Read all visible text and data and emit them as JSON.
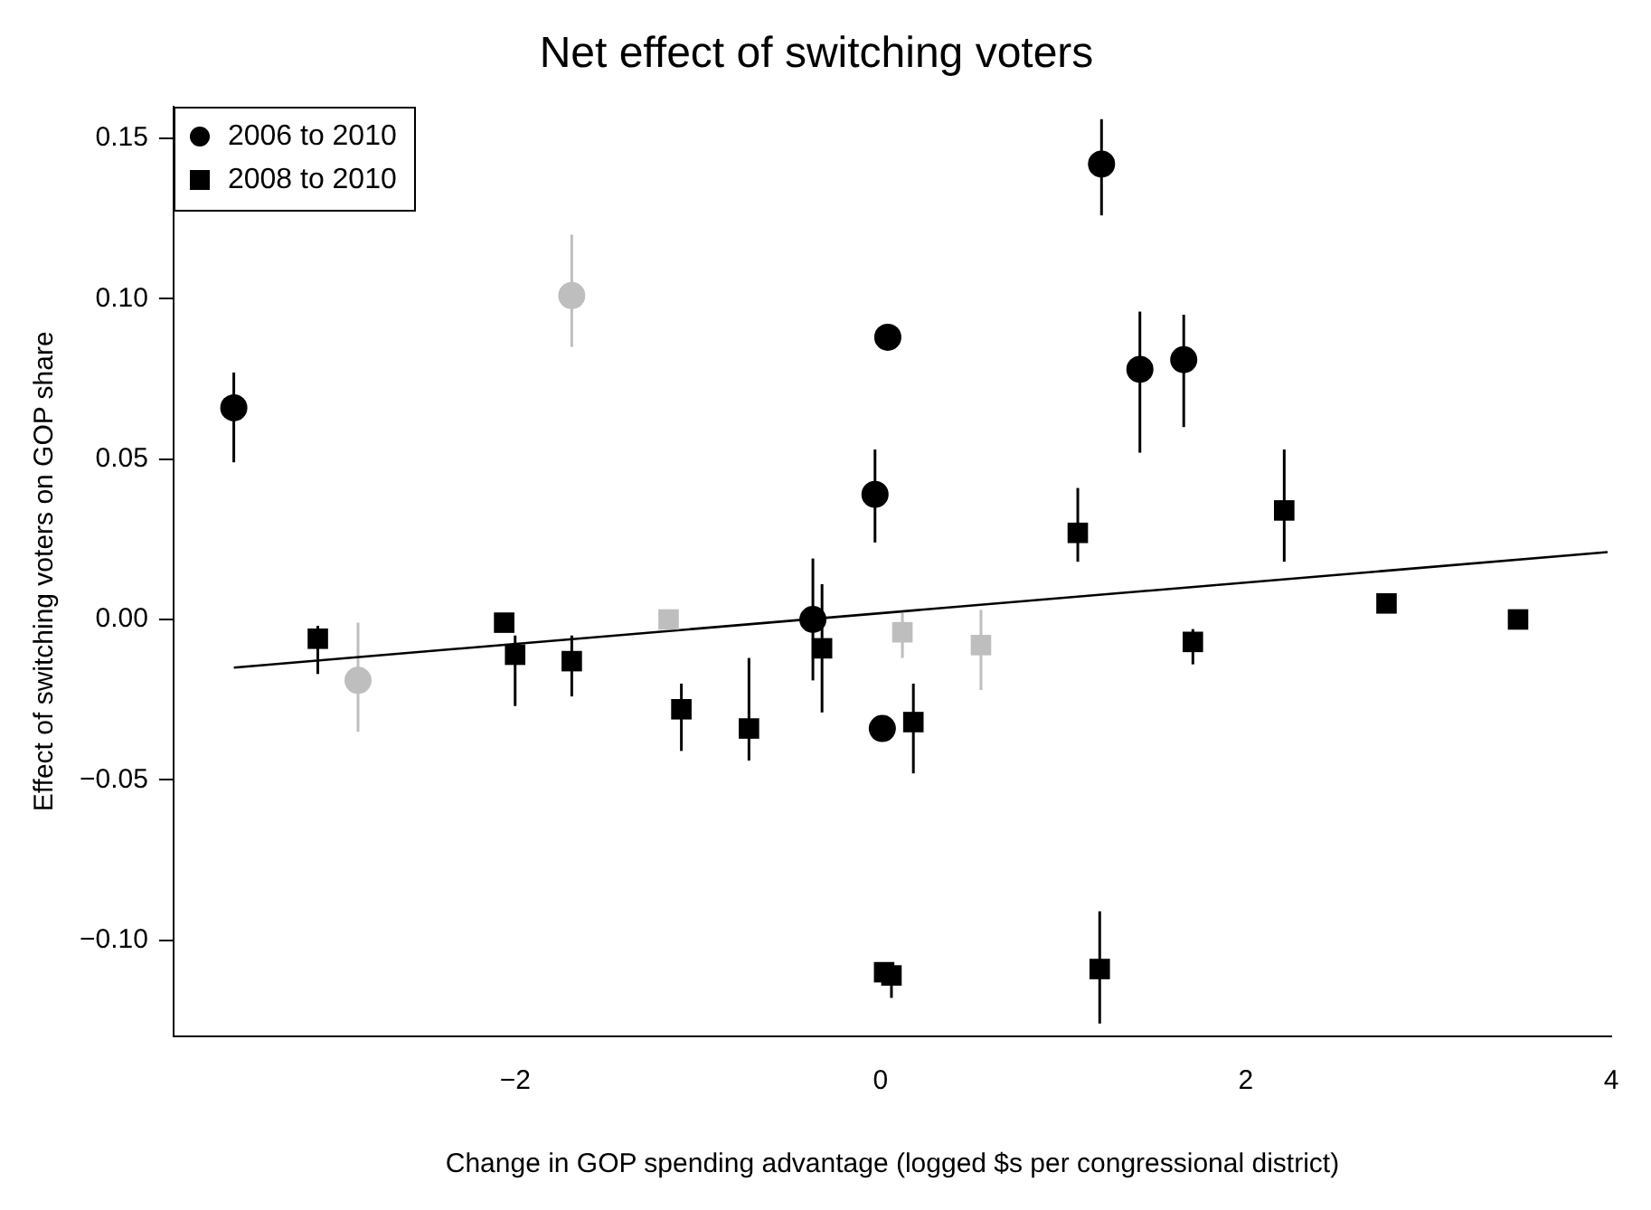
{
  "chart_data": {
    "type": "scatter",
    "title": "Net effect of switching voters",
    "xlabel": "Change in GOP spending advantage (logged $s per congressional district)",
    "ylabel": "Effect of switching voters on GOP share",
    "xlim": [
      -3.87,
      4.0
    ],
    "ylim": [
      -0.13,
      0.16
    ],
    "xticks": [
      {
        "value": -2,
        "label": "−2"
      },
      0,
      2,
      4
    ],
    "yticks": [
      {
        "value": -0.1,
        "label": "−0.10"
      },
      {
        "value": -0.05,
        "label": "−0.05"
      },
      {
        "value": 0,
        "label": "0.00"
      },
      {
        "value": 0.05,
        "label": "0.05"
      },
      {
        "value": 0.1,
        "label": "0.10"
      },
      {
        "value": 0.15,
        "label": "0.15"
      }
    ],
    "grid": false,
    "legend": "top left",
    "series": [
      {
        "name": "2006 to 2010",
        "color": "#000000",
        "marker": "circle",
        "x": [
          -3.54,
          -1.69,
          -2.86,
          -0.37,
          0.04,
          -0.03,
          0.01,
          1.21,
          1.42,
          1.66
        ],
        "values": [
          0.066,
          0.101,
          -0.019,
          0.0,
          0.088,
          0.039,
          -0.034,
          0.142,
          0.078,
          0.081
        ],
        "colors": [
          "#000000",
          "#bebebe",
          "#bebebe",
          "#000000",
          "#000000",
          "#000000",
          "#000000",
          "#000000",
          "#000000",
          "#000000"
        ],
        "errors": [
          [
            0.049,
            0.077
          ],
          [
            0.085,
            0.12
          ],
          [
            -0.035,
            -0.001
          ],
          0.019,
          null,
          [
            0.024,
            0.053
          ],
          null,
          [
            0.126,
            0.156
          ],
          [
            0.052,
            0.096
          ],
          [
            0.06,
            0.095
          ]
        ]
      },
      {
        "name": "2008 to 2010",
        "color": "#000000",
        "marker": "square",
        "x": [
          -3.08,
          -2.06,
          -2.0,
          -1.69,
          -1.16,
          -1.09,
          -0.72,
          -0.32,
          0.12,
          0.55,
          0.18,
          0.02,
          0.06,
          1.2,
          1.08,
          2.21,
          1.71,
          2.77,
          3.49
        ],
        "values": [
          -0.006,
          -0.001,
          -0.011,
          -0.013,
          0.0,
          -0.028,
          -0.034,
          -0.009,
          -0.004,
          -0.008,
          -0.032,
          -0.11,
          -0.111,
          -0.109,
          0.027,
          0.034,
          -0.007,
          0.005,
          0.0
        ],
        "colors": [
          "#000000",
          "#000000",
          "#000000",
          "#000000",
          "#bebebe",
          "#000000",
          "#000000",
          "#000000",
          "#bebebe",
          "#bebebe",
          "#000000",
          "#000000",
          "#000000",
          "#000000",
          "#000000",
          "#000000",
          "#000000",
          "#000000",
          "#000000"
        ],
        "errors": [
          [
            -0.017,
            -0.002
          ],
          null,
          [
            -0.027,
            -0.005
          ],
          [
            -0.024,
            -0.005
          ],
          null,
          [
            -0.041,
            -0.02
          ],
          [
            -0.044,
            -0.012
          ],
          0.02,
          [
            -0.012,
            0.002
          ],
          [
            -0.022,
            0.003
          ],
          [
            -0.048,
            -0.02
          ],
          null,
          [
            -0.118,
            -0.111
          ],
          [
            -0.126,
            -0.091
          ],
          [
            0.018,
            0.041
          ],
          [
            0.018,
            0.053
          ],
          [
            -0.014,
            -0.003
          ],
          null,
          null
        ]
      },
      {
        "type": "line",
        "color": "#000000",
        "marker": "none",
        "x": [
          -3.54,
          3.98
        ],
        "values": [
          -0.015,
          0.021
        ]
      }
    ]
  }
}
